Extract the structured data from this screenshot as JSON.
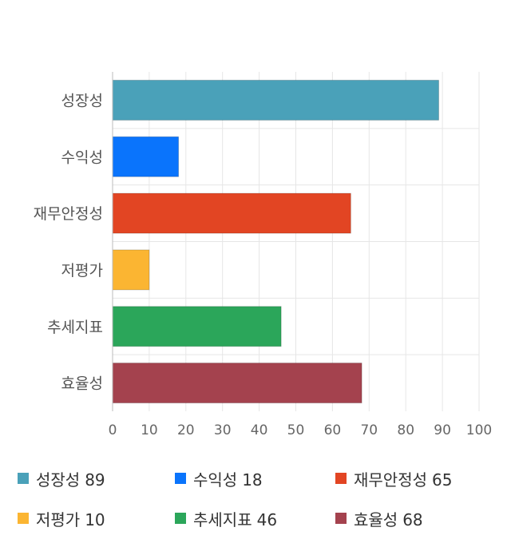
{
  "chart_data": {
    "type": "bar",
    "orientation": "horizontal",
    "title": "",
    "xlabel": "",
    "ylabel": "",
    "xlim": [
      0,
      100
    ],
    "ticks": [
      "0",
      "10",
      "20",
      "30",
      "40",
      "50",
      "60",
      "70",
      "80",
      "90",
      "100"
    ],
    "grid": true,
    "legend_position": "bottom",
    "categories": [
      "성장성",
      "수익성",
      "재무안정성",
      "저평가",
      "추세지표",
      "효율성"
    ],
    "values": [
      89,
      18,
      65,
      10,
      46,
      68
    ],
    "colors": [
      "#4aa1b9",
      "#0a74fc",
      "#e24523",
      "#fbb532",
      "#2ba65a",
      "#a4424e"
    ]
  }
}
